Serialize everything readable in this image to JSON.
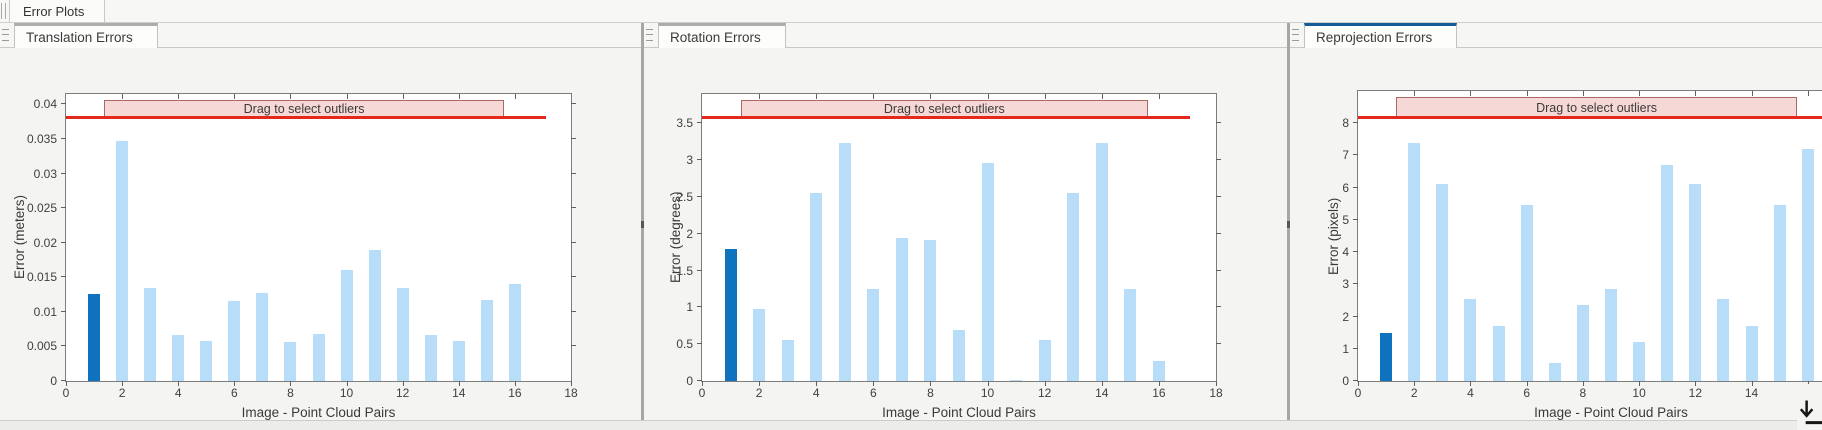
{
  "app": {
    "main_tab": "Error Plots"
  },
  "colors": {
    "bar": "#B7DDF8",
    "bar_highlight": "#0F72BE",
    "threshold_line": "#E2291C",
    "banner_fill": "#F6D8D6",
    "banner_border": "#A96A62",
    "tab_accent_active": "#165A96",
    "tab_accent_inactive": "#ADADAD"
  },
  "charts": [
    {
      "type": "bar",
      "tab": "Translation Errors",
      "ylabel": "Error (meters)",
      "xlabel": "Image - Point Cloud Pairs",
      "banner_label": "Drag to select outliers",
      "x": [
        1,
        2,
        3,
        4,
        5,
        6,
        7,
        8,
        9,
        10,
        11,
        12,
        13,
        14,
        15,
        16
      ],
      "values": [
        0.0126,
        0.0347,
        0.0135,
        0.0067,
        0.0058,
        0.0116,
        0.0127,
        0.0056,
        0.0068,
        0.016,
        0.0189,
        0.0135,
        0.0067,
        0.0058,
        0.0117,
        0.014
      ],
      "highlight_index": 0,
      "threshold": 0.038,
      "xlim": [
        0,
        18
      ],
      "ylim": [
        0,
        0.0415
      ],
      "xticks": [
        0,
        2,
        4,
        6,
        8,
        10,
        12,
        14,
        16,
        18
      ],
      "yticks": [
        0,
        0.005,
        0.01,
        0.015,
        0.02,
        0.025,
        0.03,
        0.035,
        0.04
      ],
      "ytick_labels": [
        "0",
        "0.005",
        "0.01",
        "0.015",
        "0.02",
        "0.025",
        "0.03",
        "0.035",
        "0.04"
      ]
    },
    {
      "type": "bar",
      "tab": "Rotation Errors",
      "ylabel": "Error (degrees)",
      "xlabel": "Image - Point Cloud Pairs",
      "banner_label": "Drag to select outliers",
      "x": [
        1,
        2,
        3,
        4,
        5,
        6,
        7,
        8,
        9,
        10,
        11,
        12,
        13,
        14,
        15,
        16
      ],
      "values": [
        1.8,
        0.98,
        0.56,
        2.56,
        3.24,
        1.25,
        1.95,
        1.92,
        0.7,
        2.96,
        0.02,
        0.56,
        2.56,
        3.24,
        1.25,
        0.27
      ],
      "highlight_index": 0,
      "threshold": 3.57,
      "xlim": [
        0,
        18
      ],
      "ylim": [
        0,
        3.9
      ],
      "xticks": [
        0,
        2,
        4,
        6,
        8,
        10,
        12,
        14,
        16,
        18
      ],
      "yticks": [
        0,
        0.5,
        1,
        1.5,
        2,
        2.5,
        3,
        3.5
      ],
      "ytick_labels": [
        "0",
        "0.5",
        "1",
        "1.5",
        "2",
        "2.5",
        "3",
        "3.5"
      ]
    },
    {
      "type": "bar",
      "tab": "Reprojection Errors",
      "ylabel": "Error (pixels)",
      "xlabel": "Image - Point Cloud Pairs",
      "banner_label": "Drag to select outliers",
      "x": [
        1,
        2,
        3,
        4,
        5,
        6,
        7,
        8,
        9,
        10,
        11,
        12,
        13,
        14,
        15,
        16
      ],
      "values": [
        1.5,
        7.4,
        6.1,
        2.55,
        1.7,
        5.45,
        0.55,
        2.35,
        2.85,
        1.2,
        6.7,
        6.1,
        2.55,
        1.7,
        5.45,
        7.2
      ],
      "highlight_index": 0,
      "threshold": 8.15,
      "xlim": [
        0,
        18
      ],
      "ylim": [
        0,
        9
      ],
      "xticks": [
        0,
        2,
        4,
        6,
        8,
        10,
        12,
        14,
        16,
        18
      ],
      "yticks": [
        0,
        1,
        2,
        3,
        4,
        5,
        6,
        7,
        8
      ],
      "ytick_labels": [
        "0",
        "1",
        "2",
        "3",
        "4",
        "5",
        "6",
        "7",
        "8"
      ]
    }
  ]
}
